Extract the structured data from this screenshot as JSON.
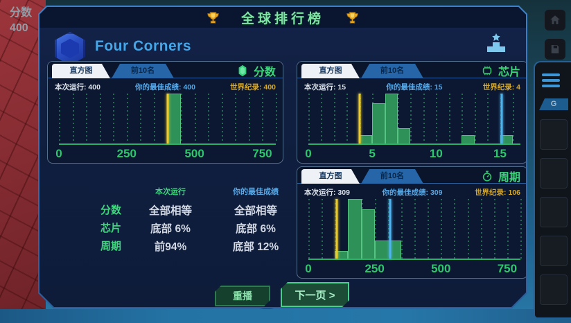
{
  "hud": {
    "score_label": "分数",
    "score_value": "400"
  },
  "window": {
    "title": "全球排行榜",
    "level_name": "Four Corners",
    "replay_button": "重播",
    "next_button": "下一页 >"
  },
  "right_sidebar": {
    "tab_label": "G"
  },
  "icons": {
    "title_left": "trophy-icon",
    "title_right": "trophy-icon",
    "level": "hexagon-level-icon",
    "rank": "podium-star-icon",
    "score_panel": "gem-icon",
    "chips_panel": "chip-icon",
    "cycle_panel": "stopwatch-icon",
    "background": [
      "home-icon",
      "save-icon",
      "menu-icon"
    ]
  },
  "colors": {
    "accent_green": "#3fd67e",
    "best_blue": "#58a8e6",
    "record_gold": "#d3a72e",
    "bar_green": "#2e9158",
    "marker_yellow": "#eecb2d",
    "marker_blue": "#4fb3ef",
    "dialog_navy": "#0e1c3a",
    "tab_active": "#eef1f5",
    "tab_inactive": "#2565a8"
  },
  "panels": [
    {
      "metric": "分数",
      "tab_histogram": "直方图",
      "tab_top10": "前10名",
      "run": "本次运行: 400",
      "best": "你的最佳成绩: 400",
      "record": "世界纪录: 400"
    },
    {
      "metric": "芯片",
      "tab_histogram": "直方图",
      "tab_top10": "前10名",
      "run": "本次运行: 15",
      "best": "你的最佳成绩: 15",
      "record": "世界纪录: 4"
    },
    {
      "metric": "周期",
      "tab_histogram": "直方图",
      "tab_top10": "前10名",
      "run": "本次运行: 309",
      "best": "你的最佳成绩: 309",
      "record": "世界纪录: 106"
    }
  ],
  "summary": {
    "col_run": "本次运行",
    "col_best": "你的最佳成绩",
    "rows": [
      {
        "label": "分数",
        "run": "全部相等",
        "best": "全部相等"
      },
      {
        "label": "芯片",
        "run": "底部 6%",
        "best": "底部 6%"
      },
      {
        "label": "周期",
        "run": "前94%",
        "best": "底部 12%"
      }
    ]
  },
  "chart_data": [
    {
      "type": "bar",
      "title": "分数 histogram",
      "xlabel": "分数",
      "ylabel": "",
      "xlim": [
        0,
        800
      ],
      "grid_step": 50,
      "ticks": [
        0,
        250,
        500,
        750
      ],
      "grid": true,
      "bins": [
        {
          "x0": 400,
          "x1": 450,
          "h": 1.0
        }
      ],
      "markers": [
        {
          "x": 400,
          "color": "#eecb2d",
          "name": "world-record-and-current-run",
          "value": 400
        }
      ]
    },
    {
      "type": "bar",
      "title": "芯片 histogram",
      "xlabel": "芯片",
      "ylabel": "",
      "xlim": [
        0,
        16.6
      ],
      "grid_step": 1,
      "ticks": [
        0,
        5,
        10,
        15
      ],
      "grid": true,
      "bins": [
        {
          "x0": 4,
          "x1": 5,
          "h": 0.17
        },
        {
          "x0": 5,
          "x1": 6,
          "h": 0.8
        },
        {
          "x0": 6,
          "x1": 7,
          "h": 1.0
        },
        {
          "x0": 7,
          "x1": 8,
          "h": 0.3
        },
        {
          "x0": 12,
          "x1": 13,
          "h": 0.17
        },
        {
          "x0": 15,
          "x1": 16,
          "h": 0.17
        }
      ],
      "markers": [
        {
          "x": 4,
          "color": "#eecb2d",
          "name": "world-record",
          "value": 4
        },
        {
          "x": 15.15,
          "color": "#4fb3ef",
          "name": "best-score",
          "value": 15
        }
      ]
    },
    {
      "type": "bar",
      "title": "周期 histogram",
      "xlabel": "周期",
      "ylabel": "",
      "xlim": [
        0,
        800
      ],
      "grid_step": 50,
      "ticks": [
        0,
        250,
        500,
        750
      ],
      "grid": true,
      "bins": [
        {
          "x0": 100,
          "x1": 150,
          "h": 0.13
        },
        {
          "x0": 150,
          "x1": 200,
          "h": 1.0
        },
        {
          "x0": 200,
          "x1": 250,
          "h": 0.82
        },
        {
          "x0": 250,
          "x1": 350,
          "h": 0.3
        }
      ],
      "markers": [
        {
          "x": 106,
          "color": "#eecb2d",
          "name": "world-record",
          "value": 106
        },
        {
          "x": 309,
          "color": "#4fb3ef",
          "name": "best-score",
          "value": 309
        }
      ]
    }
  ]
}
